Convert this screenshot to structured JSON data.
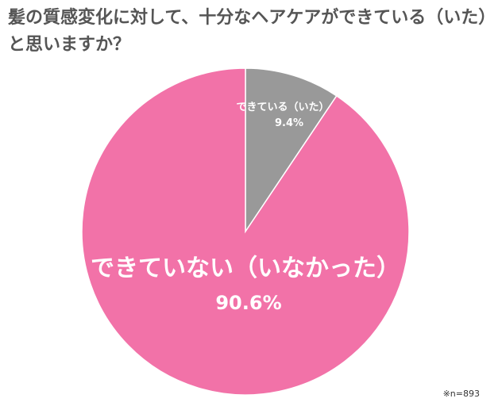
{
  "chart_data": {
    "type": "pie",
    "title": "髪の質感変化に対して、十分なヘアケアができている（いた）と思いますか？",
    "slices": [
      {
        "label": "できている（いた）",
        "value": 9.4,
        "value_label": "9.4%",
        "color": "#999999"
      },
      {
        "label": "できていない（いなかった）",
        "value": 90.6,
        "value_label": "90.6%",
        "color": "#f272a8"
      }
    ],
    "start": "12 o'clock, clockwise",
    "legend": "none",
    "note": "※n=893"
  }
}
